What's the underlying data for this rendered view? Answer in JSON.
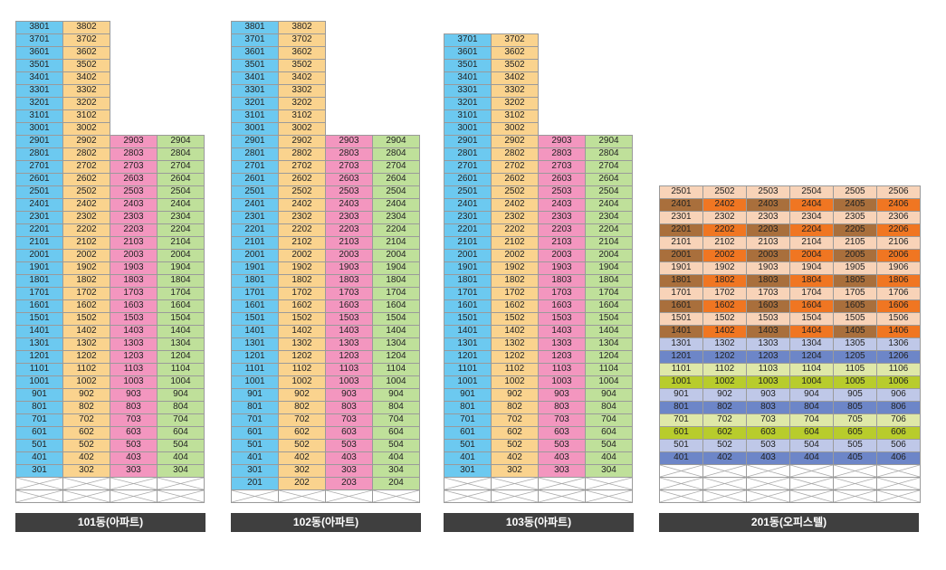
{
  "buildings": [
    {
      "id": "101",
      "label": "101동(아파트)",
      "columns": [
        {
          "suffix": "01",
          "color": "#6CC9F0",
          "top_floor": 38,
          "bottom_floor": 3
        },
        {
          "suffix": "02",
          "color": "#FAD38E",
          "top_floor": 38,
          "bottom_floor": 3
        },
        {
          "suffix": "03",
          "color": "#F396BF",
          "top_floor": 29,
          "bottom_floor": 3
        },
        {
          "suffix": "04",
          "color": "#BFE09A",
          "top_floor": 29,
          "bottom_floor": 3
        }
      ],
      "pilotis_rows": 2
    },
    {
      "id": "102",
      "label": "102동(아파트)",
      "columns": [
        {
          "suffix": "01",
          "color": "#6CC9F0",
          "top_floor": 38,
          "bottom_floor": 2
        },
        {
          "suffix": "02",
          "color": "#FAD38E",
          "top_floor": 38,
          "bottom_floor": 2
        },
        {
          "suffix": "03",
          "color": "#F396BF",
          "top_floor": 29,
          "bottom_floor": 2
        },
        {
          "suffix": "04",
          "color": "#BFE09A",
          "top_floor": 29,
          "bottom_floor": 2
        }
      ],
      "pilotis_rows": 1
    },
    {
      "id": "103",
      "label": "103동(아파트)",
      "columns": [
        {
          "suffix": "01",
          "color": "#6CC9F0",
          "top_floor": 37,
          "bottom_floor": 3
        },
        {
          "suffix": "02",
          "color": "#FAD38E",
          "top_floor": 37,
          "bottom_floor": 3
        },
        {
          "suffix": "03",
          "color": "#F396BF",
          "top_floor": 29,
          "bottom_floor": 3
        },
        {
          "suffix": "04",
          "color": "#BFE09A",
          "top_floor": 29,
          "bottom_floor": 3
        }
      ],
      "pilotis_rows": 2
    },
    {
      "id": "201",
      "label": "201동(오피스텔)",
      "columns": [
        {
          "suffix": "01"
        },
        {
          "suffix": "02"
        },
        {
          "suffix": "03"
        },
        {
          "suffix": "04"
        },
        {
          "suffix": "05"
        },
        {
          "suffix": "06"
        }
      ],
      "top_floor": 25,
      "bottom_floor": 4,
      "floor_bands": [
        {
          "from": 14,
          "to": 25,
          "light": "#F8D3B8",
          "dark": "#F07622",
          "odd_cols": "#C89A73",
          "even_cols": "#A96F3C"
        },
        {
          "from": 4,
          "to": 13,
          "light": "#BFC8E8",
          "dark": "#6D86C8",
          "alt_light": "#DFE8A8",
          "alt_dark": "#B8CC2C"
        }
      ],
      "pilotis_rows": 3
    }
  ]
}
